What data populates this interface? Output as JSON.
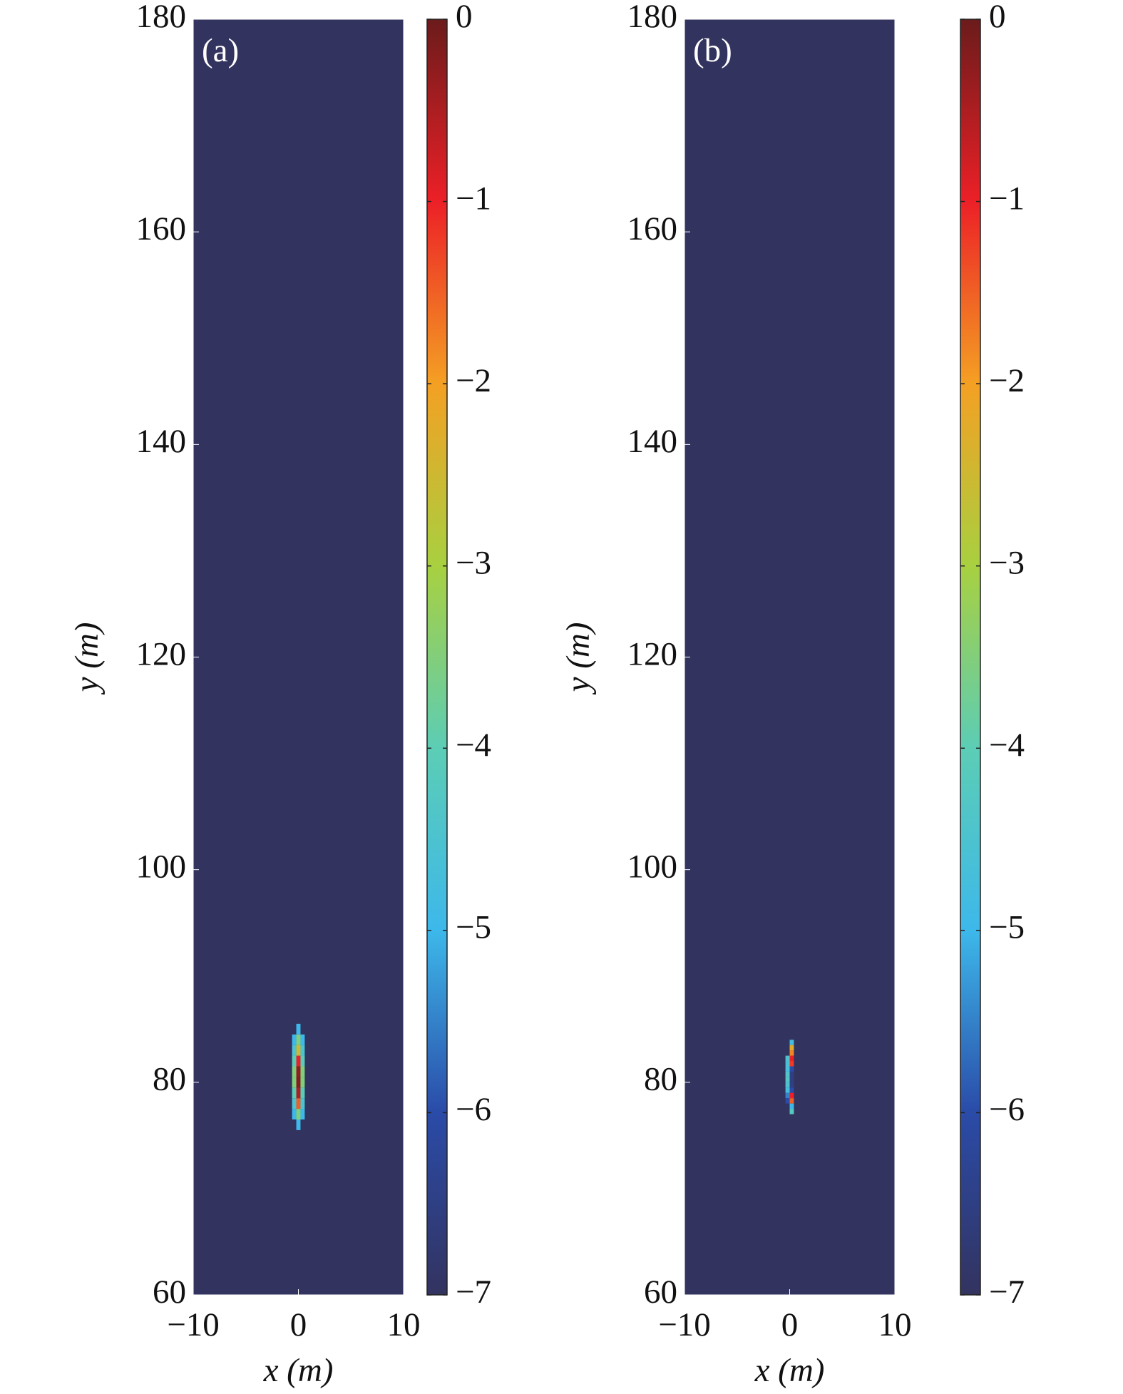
{
  "chart_data": [
    {
      "type": "heatmap",
      "panel_label": "(a)",
      "x_label": "x (m)",
      "y_label": "y (m)",
      "xlim": [
        -10,
        10
      ],
      "xticks": [
        {
          "value": -10,
          "label": "−10"
        },
        0,
        10
      ],
      "ylim": [
        60,
        180
      ],
      "yticks": [
        60,
        80,
        100,
        120,
        140,
        160,
        180
      ],
      "clim": [
        -7,
        0
      ],
      "cticks": [
        {
          "value": -7,
          "label": "−7"
        },
        {
          "value": -6,
          "label": "−6"
        },
        {
          "value": -5,
          "label": "−5"
        },
        {
          "value": -4,
          "label": "−4"
        },
        {
          "value": -3,
          "label": "−3"
        },
        {
          "value": -2,
          "label": "−2"
        },
        {
          "value": -1,
          "label": "−1"
        },
        0
      ],
      "colormap": [
        "#33335f",
        "#2a4ba8",
        "#3db8ea",
        "#5ccdb5",
        "#a8d040",
        "#f4a023",
        "#ec2027",
        "#6b1b1b"
      ],
      "background_value": -7,
      "cell_size": [
        0.4,
        1
      ],
      "x": [
        0,
        0,
        0,
        0,
        0,
        0,
        0,
        0,
        0,
        0,
        -0.4,
        -0.4,
        -0.4,
        -0.4,
        -0.4,
        -0.4,
        -0.4,
        -0.4,
        0.4,
        0.4,
        0.4,
        0.4,
        0.4,
        0.4,
        0.4,
        0.4
      ],
      "y": [
        76,
        77,
        78,
        79,
        80,
        81,
        82,
        83,
        84,
        85,
        77,
        78,
        79,
        80,
        81,
        82,
        83,
        84,
        77,
        78,
        79,
        80,
        81,
        82,
        83,
        84
      ],
      "values": [
        -5,
        -3.5,
        -1.5,
        -0.5,
        -0.2,
        -0.3,
        -1,
        -2.5,
        -3.5,
        -5,
        -5,
        -4.5,
        -4,
        -3.5,
        -3.5,
        -4,
        -4.5,
        -5,
        -5,
        -4.5,
        -4,
        -3.5,
        -3.5,
        -4,
        -4.5,
        -5
      ]
    },
    {
      "type": "heatmap",
      "panel_label": "(b)",
      "x_label": "x (m)",
      "y_label": "y (m)",
      "xlim": [
        -10,
        10
      ],
      "xticks": [
        {
          "value": -10,
          "label": "−10"
        },
        0,
        10
      ],
      "ylim": [
        60,
        180
      ],
      "yticks": [
        60,
        80,
        100,
        120,
        140,
        160,
        180
      ],
      "clim": [
        -7,
        0
      ],
      "cticks": [
        {
          "value": -7,
          "label": "−7"
        },
        {
          "value": -6,
          "label": "−6"
        },
        {
          "value": -5,
          "label": "−5"
        },
        {
          "value": -4,
          "label": "−4"
        },
        {
          "value": -3,
          "label": "−3"
        },
        {
          "value": -2,
          "label": "−2"
        },
        {
          "value": -1,
          "label": "−1"
        },
        0
      ],
      "colormap": [
        "#33335f",
        "#2a4ba8",
        "#3db8ea",
        "#5ccdb5",
        "#a8d040",
        "#f4a023",
        "#ec2027",
        "#6b1b1b"
      ],
      "background_value": -7,
      "cell_size": [
        0.4,
        0.5
      ],
      "x": [
        0.2,
        0.2,
        0.2,
        0.2,
        0.2,
        0.2,
        0.2,
        0.2,
        0.2,
        0.2,
        0.2,
        0.2,
        0.2,
        0.2,
        -0.2,
        -0.2,
        -0.2,
        -0.2,
        -0.2,
        -0.2,
        -0.2,
        -0.2,
        -0.2
      ],
      "y": [
        83.75,
        83.25,
        82.75,
        82.25,
        81.75,
        81.25,
        80.75,
        80.25,
        79.75,
        79.25,
        78.75,
        78.25,
        77.75,
        77.25,
        82.25,
        81.75,
        81.25,
        80.75,
        80.25,
        79.75,
        79.25,
        78.75,
        78.25
      ],
      "values": [
        -4.8,
        -2.2,
        -1.8,
        -1,
        -1.2,
        -6,
        -6.5,
        -6.5,
        -6.5,
        -6,
        -1,
        -1.5,
        -5,
        -4.2,
        -4.5,
        -4.6,
        -4.6,
        -4.4,
        -4.3,
        -4.5,
        -4.7,
        -5.5,
        -6
      ]
    }
  ]
}
